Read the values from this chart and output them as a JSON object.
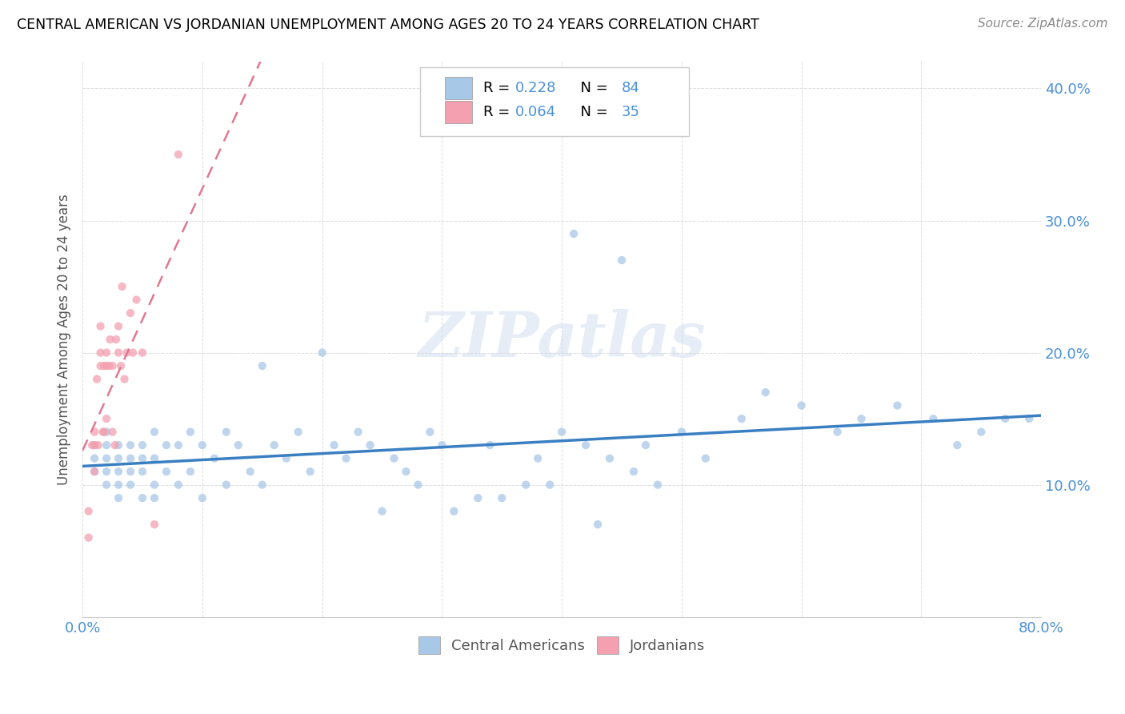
{
  "title": "CENTRAL AMERICAN VS JORDANIAN UNEMPLOYMENT AMONG AGES 20 TO 24 YEARS CORRELATION CHART",
  "source": "Source: ZipAtlas.com",
  "ylabel": "Unemployment Among Ages 20 to 24 years",
  "xlim": [
    0.0,
    0.8
  ],
  "ylim": [
    0.0,
    0.42
  ],
  "watermark": "ZIPatlas",
  "legend_r1": "0.228",
  "legend_n1": "84",
  "legend_r2": "0.064",
  "legend_n2": "35",
  "color_blue": "#a8c8e8",
  "color_pink": "#f4a0b0",
  "line_blue": "#3a7fc1",
  "line_pink": "#e07890",
  "grid_color": "#dddddd",
  "tick_color": "#4a90d9",
  "ylabel_color": "#555555",
  "ca_x": [
    0.01,
    0.01,
    0.01,
    0.02,
    0.02,
    0.02,
    0.02,
    0.02,
    0.03,
    0.03,
    0.03,
    0.03,
    0.03,
    0.04,
    0.04,
    0.04,
    0.04,
    0.05,
    0.05,
    0.05,
    0.05,
    0.06,
    0.06,
    0.06,
    0.06,
    0.07,
    0.07,
    0.08,
    0.08,
    0.09,
    0.09,
    0.1,
    0.1,
    0.11,
    0.12,
    0.12,
    0.13,
    0.14,
    0.15,
    0.15,
    0.16,
    0.17,
    0.18,
    0.19,
    0.2,
    0.21,
    0.22,
    0.23,
    0.24,
    0.25,
    0.26,
    0.27,
    0.28,
    0.29,
    0.3,
    0.31,
    0.33,
    0.34,
    0.35,
    0.37,
    0.38,
    0.39,
    0.4,
    0.41,
    0.42,
    0.43,
    0.44,
    0.45,
    0.46,
    0.47,
    0.48,
    0.5,
    0.52,
    0.55,
    0.57,
    0.6,
    0.63,
    0.65,
    0.68,
    0.71,
    0.73,
    0.75,
    0.77,
    0.79
  ],
  "ca_y": [
    0.11,
    0.12,
    0.13,
    0.1,
    0.11,
    0.12,
    0.13,
    0.14,
    0.09,
    0.1,
    0.11,
    0.12,
    0.13,
    0.1,
    0.11,
    0.12,
    0.13,
    0.09,
    0.11,
    0.12,
    0.13,
    0.09,
    0.1,
    0.12,
    0.14,
    0.11,
    0.13,
    0.1,
    0.13,
    0.11,
    0.14,
    0.09,
    0.13,
    0.12,
    0.1,
    0.14,
    0.13,
    0.11,
    0.1,
    0.19,
    0.13,
    0.12,
    0.14,
    0.11,
    0.2,
    0.13,
    0.12,
    0.14,
    0.13,
    0.08,
    0.12,
    0.11,
    0.1,
    0.14,
    0.13,
    0.08,
    0.09,
    0.13,
    0.09,
    0.1,
    0.12,
    0.1,
    0.14,
    0.29,
    0.13,
    0.07,
    0.12,
    0.27,
    0.11,
    0.13,
    0.1,
    0.14,
    0.12,
    0.15,
    0.17,
    0.16,
    0.14,
    0.15,
    0.16,
    0.15,
    0.13,
    0.14,
    0.15,
    0.15
  ],
  "jo_x": [
    0.005,
    0.005,
    0.008,
    0.01,
    0.01,
    0.01,
    0.012,
    0.013,
    0.015,
    0.015,
    0.015,
    0.017,
    0.018,
    0.018,
    0.02,
    0.02,
    0.02,
    0.022,
    0.023,
    0.025,
    0.025,
    0.027,
    0.028,
    0.03,
    0.03,
    0.032,
    0.033,
    0.035,
    0.037,
    0.04,
    0.042,
    0.045,
    0.05,
    0.06,
    0.08
  ],
  "jo_y": [
    0.08,
    0.06,
    0.13,
    0.14,
    0.11,
    0.13,
    0.18,
    0.13,
    0.19,
    0.2,
    0.22,
    0.14,
    0.19,
    0.14,
    0.15,
    0.19,
    0.2,
    0.19,
    0.21,
    0.14,
    0.19,
    0.13,
    0.21,
    0.22,
    0.2,
    0.19,
    0.25,
    0.18,
    0.2,
    0.23,
    0.2,
    0.24,
    0.2,
    0.07,
    0.35
  ]
}
